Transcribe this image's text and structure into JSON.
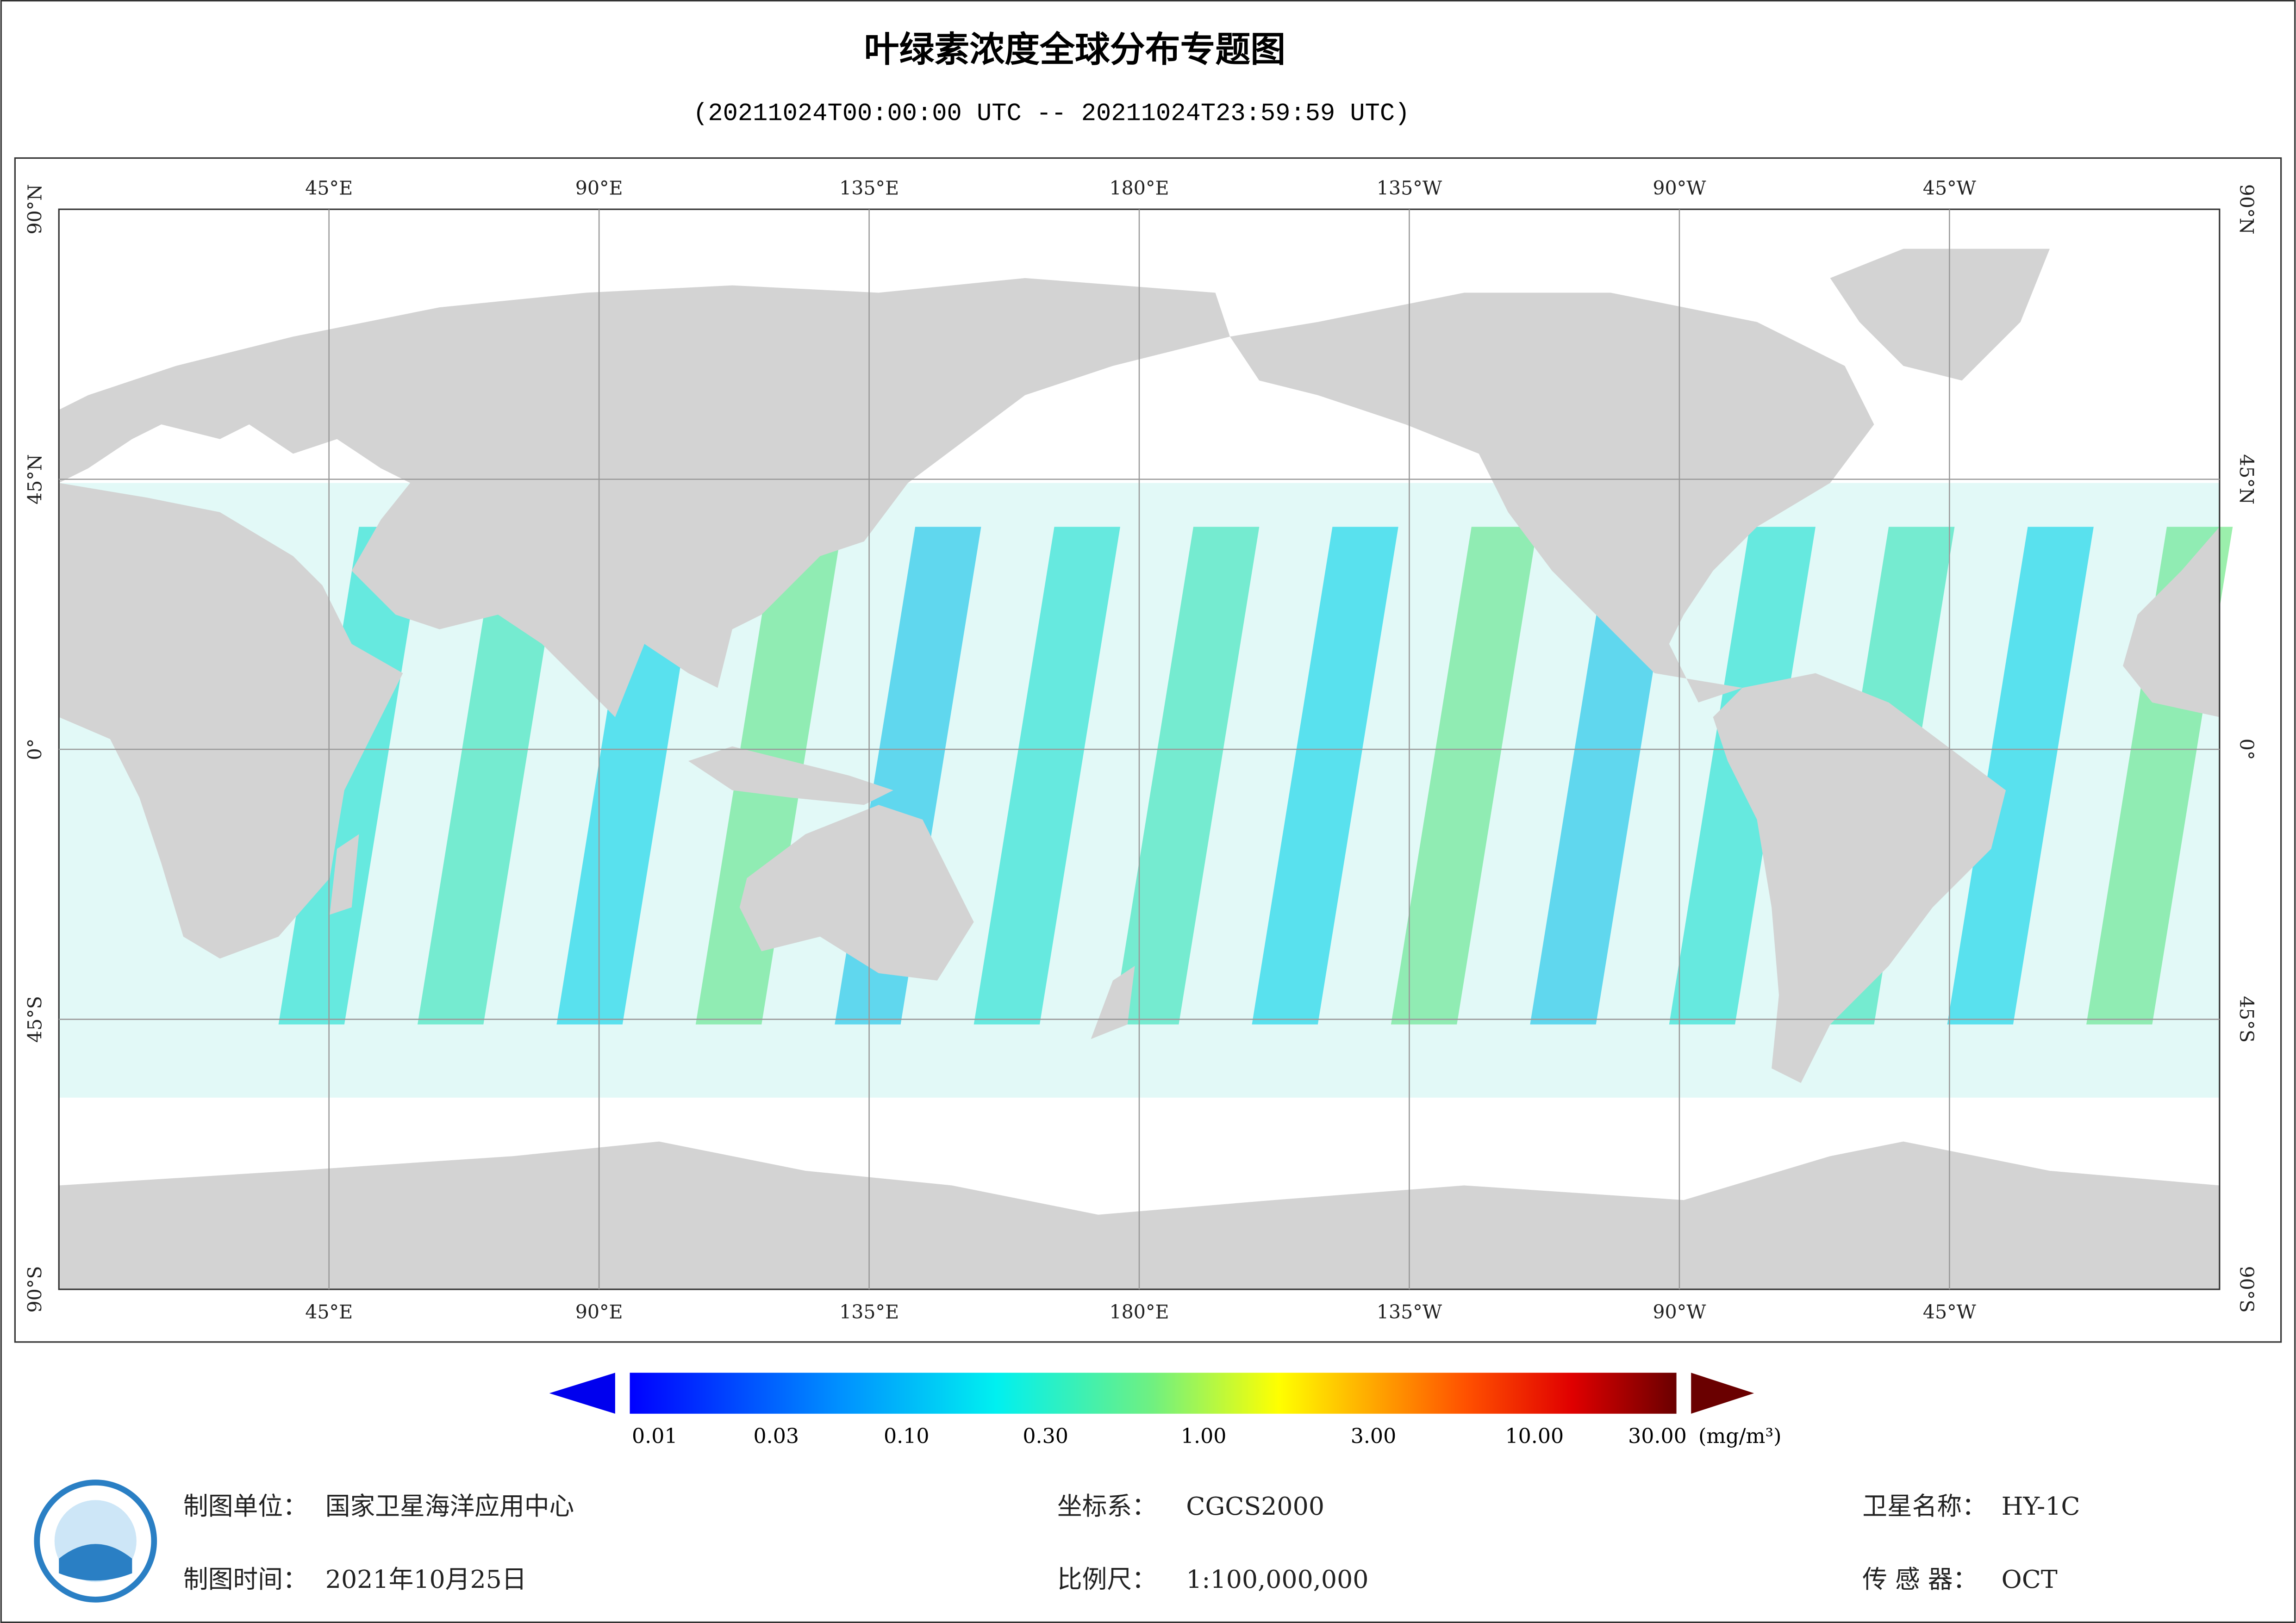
{
  "header": {
    "title": "叶绿素浓度全球分布专题图",
    "subtitle": "(20211024T00:00:00 UTC -- 20211024T23:59:59 UTC)"
  },
  "map": {
    "longitude_labels": [
      "45°E",
      "90°E",
      "135°E",
      "180°E",
      "135°W",
      "90°W",
      "45°W"
    ],
    "latitude_labels": [
      "90°N",
      "45°N",
      "0°",
      "45°S",
      "90°S"
    ]
  },
  "colorbar": {
    "tick_labels": [
      "0.01",
      "0.03",
      "0.10",
      "0.30",
      "1.00",
      "3.00",
      "10.00",
      "30.00"
    ],
    "unit": "(mg/m³)"
  },
  "footer": {
    "organization": {
      "label": "制图单位：",
      "value": "国家卫星海洋应用中心"
    },
    "date": {
      "label": "制图时间：",
      "value": "2021年10月25日"
    },
    "coordinate_system": {
      "label": "坐标系：",
      "value": "CGCS2000"
    },
    "scale": {
      "label": "比例尺：",
      "value": "1:100,000,000"
    },
    "satellite": {
      "label": "卫星名称：",
      "value": "HY-1C"
    },
    "sensor": {
      "label": "传 感 器：",
      "value": "OCT"
    }
  }
}
